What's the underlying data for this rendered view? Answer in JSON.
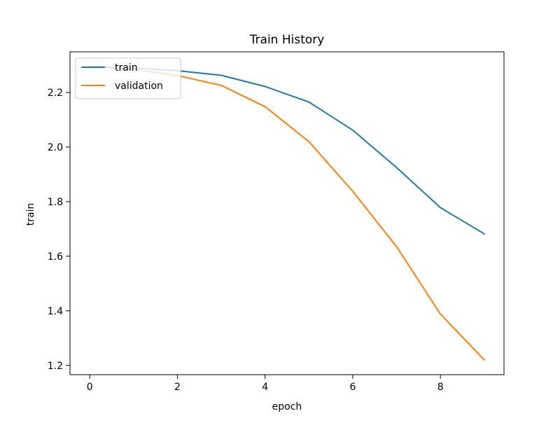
{
  "chart_data": {
    "type": "line",
    "title": "Train History",
    "xlabel": "epoch",
    "ylabel": "train",
    "x": [
      0,
      1,
      2,
      3,
      4,
      5,
      6,
      7,
      8,
      9
    ],
    "series": [
      {
        "name": "train",
        "color": "#1f77b4",
        "values": [
          2.295,
          2.29,
          2.28,
          2.263,
          2.222,
          2.165,
          2.062,
          1.925,
          1.778,
          1.682
        ]
      },
      {
        "name": "validation",
        "color": "#ff7f0e",
        "values": [
          2.295,
          2.285,
          2.262,
          2.226,
          2.148,
          2.02,
          1.838,
          1.635,
          1.388,
          1.22
        ]
      }
    ],
    "xticks": [
      0,
      2,
      4,
      6,
      8
    ],
    "yticks": [
      1.2,
      1.4,
      1.6,
      1.8,
      2.0,
      2.2
    ],
    "xtick_labels": [
      "0",
      "2",
      "4",
      "6",
      "8"
    ],
    "ytick_labels": [
      "1.2",
      "1.4",
      "1.6",
      "1.8",
      "2.0",
      "2.2"
    ],
    "xlim": [
      -0.45,
      9.45
    ],
    "ylim": [
      1.166,
      2.349
    ],
    "grid": false,
    "legend_position": "upper-left"
  }
}
